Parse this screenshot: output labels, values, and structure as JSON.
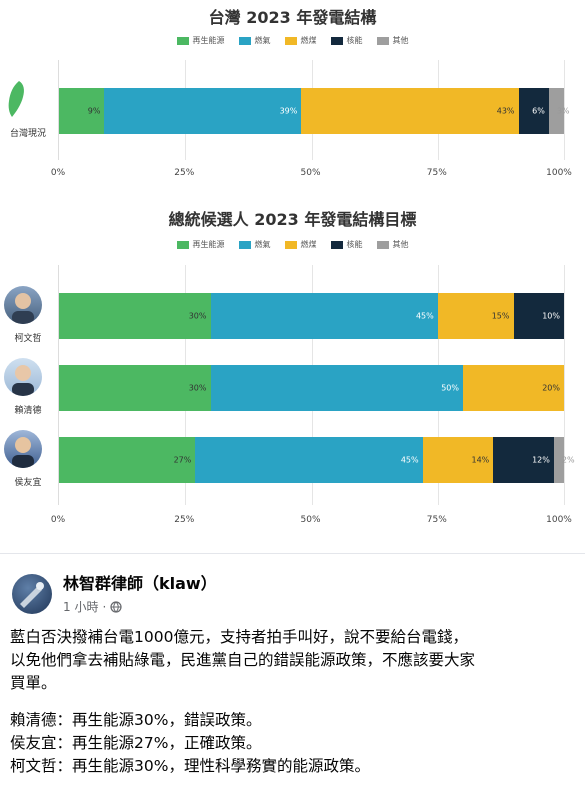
{
  "chart1": {
    "title": "台灣 2023 年發電結構",
    "legend": [
      "再生能源",
      "燃氣",
      "燃煤",
      "核能",
      "其他"
    ],
    "rows": [
      {
        "label": "台灣現況",
        "segments": [
          9,
          39,
          43,
          6,
          3
        ],
        "labels": [
          "9%",
          "39%",
          "43%",
          "6%",
          "3%"
        ]
      }
    ],
    "ticks": [
      "0%",
      "25%",
      "50%",
      "75%",
      "100%"
    ]
  },
  "chart2": {
    "title": "總統候選人 2023 年發電結構目標",
    "legend": [
      "再生能源",
      "燃氣",
      "燃煤",
      "核能",
      "其他"
    ],
    "rows": [
      {
        "label": "柯文哲",
        "segments": [
          30,
          45,
          15,
          10,
          0
        ],
        "labels": [
          "30%",
          "45%",
          "15%",
          "10%",
          ""
        ]
      },
      {
        "label": "賴清德",
        "segments": [
          30,
          50,
          20,
          0,
          0
        ],
        "labels": [
          "30%",
          "50%",
          "20%",
          "",
          ""
        ]
      },
      {
        "label": "侯友宜",
        "segments": [
          27,
          45,
          14,
          12,
          2
        ],
        "labels": [
          "27%",
          "45%",
          "14%",
          "12%",
          "2%"
        ]
      }
    ],
    "ticks": [
      "0%",
      "25%",
      "50%",
      "75%",
      "100%"
    ]
  },
  "colors": [
    "#4cb862",
    "#2aa3c4",
    "#f1b826",
    "#13293d",
    "#9e9e9e"
  ],
  "chart_data": [
    {
      "type": "bar",
      "title": "台灣 2023 年發電結構",
      "categories": [
        "台灣現況"
      ],
      "series": [
        {
          "name": "再生能源",
          "values": [
            9
          ]
        },
        {
          "name": "燃氣",
          "values": [
            39
          ]
        },
        {
          "name": "燃煤",
          "values": [
            43
          ]
        },
        {
          "name": "核能",
          "values": [
            6
          ]
        },
        {
          "name": "其他",
          "values": [
            3
          ]
        }
      ],
      "xlim": [
        0,
        100
      ],
      "legend": "top"
    },
    {
      "type": "bar",
      "title": "總統候選人 2023 年發電結構目標",
      "categories": [
        "柯文哲",
        "賴清德",
        "侯友宜"
      ],
      "series": [
        {
          "name": "再生能源",
          "values": [
            30,
            30,
            27
          ]
        },
        {
          "name": "燃氣",
          "values": [
            45,
            50,
            45
          ]
        },
        {
          "name": "燃煤",
          "values": [
            15,
            20,
            14
          ]
        },
        {
          "name": "核能",
          "values": [
            10,
            0,
            12
          ]
        },
        {
          "name": "其他",
          "values": [
            0,
            0,
            2
          ]
        }
      ],
      "xlim": [
        0,
        100
      ],
      "legend": "top"
    }
  ],
  "post": {
    "author": "林智群律師（klaw）",
    "time": "1 小時",
    "separator": "·",
    "paragraph1": [
      "藍白否決撥補台電1000億元，支持者拍手叫好，說不要給台電錢，",
      "以免他們拿去補貼綠電，民進黨自己的錯誤能源政策，不應該要大家",
      "買單。"
    ],
    "paragraph2": [
      "賴清德：再生能源30%，錯誤政策。",
      "侯友宜：再生能源27%，正確政策。",
      "柯文哲：再生能源30%，理性科學務實的能源政策。"
    ]
  }
}
